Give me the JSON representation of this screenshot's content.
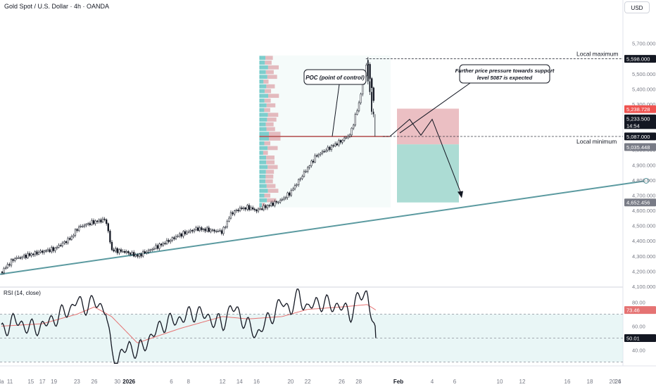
{
  "header": {
    "title": "Gold Spot / U.S. Dollar · 4h · OANDA",
    "currency": "USD"
  },
  "colors": {
    "bull": "#26a69a",
    "bear": "#ef5350",
    "candle": "#131722",
    "trendline": "#5b9aa0",
    "profile_bull": "#5dc2c2",
    "profile_bear": "#e8a7ae",
    "poc": "#b24a4a",
    "loss_zone": "#e8b4b9",
    "profit_zone": "#9ed6cc",
    "rsi_line": "#131722",
    "rsi_ma": "#e57373",
    "rsi_band": "#d7efef"
  },
  "chart_data": [
    {
      "type": "candlestick",
      "instrument": "Gold Spot / U.S. Dollar",
      "timeframe": "4h",
      "source": "OANDA",
      "ylim": [
        4100,
        5800
      ],
      "y_ticks": [
        "4,100.000",
        "4,200.000",
        "4,300.000",
        "4,400.000",
        "4,500.000",
        "4,600.000",
        "4,700.000",
        "4,800.000",
        "4,900.000",
        "5,000.000",
        "5,100.000",
        "5,200.000",
        "5,300.000",
        "5,400.000",
        "5,500.000",
        "5,600.000",
        "5,700.000"
      ],
      "x_ticks": [
        "11",
        "15",
        "17",
        "19",
        "23",
        "26",
        "30",
        "2026",
        "6",
        "8",
        "12",
        "14",
        "16",
        "20",
        "22",
        "26",
        "28",
        "Feb",
        "4",
        "6",
        "10",
        "12",
        "16",
        "18",
        "20",
        "24",
        "26",
        "Ma"
      ],
      "close_path": [
        {
          "x": "Dec 11",
          "y": 4195
        },
        {
          "x": "Dec 12",
          "y": 4280
        },
        {
          "x": "Dec 15",
          "y": 4310
        },
        {
          "x": "Dec 17",
          "y": 4330
        },
        {
          "x": "Dec 19",
          "y": 4345
        },
        {
          "x": "Dec 22",
          "y": 4420
        },
        {
          "x": "Dec 23",
          "y": 4480
        },
        {
          "x": "Dec 24",
          "y": 4500
        },
        {
          "x": "Dec 26",
          "y": 4525
        },
        {
          "x": "Dec 28",
          "y": 4540
        },
        {
          "x": "Dec 29",
          "y": 4340
        },
        {
          "x": "Dec 31",
          "y": 4330
        },
        {
          "x": "Jan 1",
          "y": 4320
        },
        {
          "x": "Jan 2",
          "y": 4300
        },
        {
          "x": "Jan 5",
          "y": 4380
        },
        {
          "x": "Jan 7",
          "y": 4440
        },
        {
          "x": "Jan 9",
          "y": 4480
        },
        {
          "x": "Jan 12",
          "y": 4460
        },
        {
          "x": "Jan 13",
          "y": 4580
        },
        {
          "x": "Jan 14",
          "y": 4610
        },
        {
          "x": "Jan 15",
          "y": 4620
        },
        {
          "x": "Jan 16",
          "y": 4600
        },
        {
          "x": "Jan 19",
          "y": 4670
        },
        {
          "x": "Jan 20",
          "y": 4720
        },
        {
          "x": "Jan 21",
          "y": 4800
        },
        {
          "x": "Jan 22",
          "y": 4880
        },
        {
          "x": "Jan 23",
          "y": 4960
        },
        {
          "x": "Jan 26",
          "y": 5060
        },
        {
          "x": "Jan 27",
          "y": 5100
        },
        {
          "x": "Jan 28",
          "y": 5300
        },
        {
          "x": "Jan 29",
          "y": 5590
        },
        {
          "x": "Jan 30",
          "y": 5233.5
        }
      ],
      "trendline": {
        "from": {
          "x": "Dec 11",
          "y": 4180
        },
        "to": {
          "x": "Feb 23",
          "y": 4795
        }
      },
      "levels": [
        {
          "name": "Local maximum",
          "value": 5598.0,
          "label": "5,598.000"
        },
        {
          "name": "Local minimum",
          "value": 5087.0,
          "label": "5,087.000"
        }
      ],
      "price_labels": [
        {
          "value": 5238.728,
          "label": "5,238.728",
          "color": "#ef5350"
        },
        {
          "value": 5233.5,
          "label": "5,233.500",
          "color": "#131722"
        },
        {
          "value": 5035.448,
          "label": "5,035.448",
          "color": "#787b86"
        },
        {
          "value": 4652.456,
          "label": "4,652.456",
          "color": "#787b86"
        }
      ],
      "countdown": "14:54",
      "volume_profile": {
        "poc": 5087
      },
      "position": {
        "entry": 5035,
        "stop": 5270,
        "target": 4652.456
      },
      "annotations": [
        {
          "text": "POC (point of control)"
        },
        {
          "text": "Further price pressure towards support level 5087 is expected"
        }
      ]
    },
    {
      "type": "line",
      "title": "RSI (14, close)",
      "ylim": [
        28,
        92
      ],
      "y_ticks": [
        80,
        60,
        40
      ],
      "band": [
        30,
        70
      ],
      "last_value": 50.01,
      "ma_value": 73.46,
      "rsi_path": [
        {
          "x": "Dec 11",
          "y": 55
        },
        {
          "x": "Dec 12",
          "y": 65
        },
        {
          "x": "Dec 15",
          "y": 58
        },
        {
          "x": "Dec 17",
          "y": 60
        },
        {
          "x": "Dec 19",
          "y": 66
        },
        {
          "x": "Dec 22",
          "y": 75
        },
        {
          "x": "Dec 23",
          "y": 82
        },
        {
          "x": "Dec 24",
          "y": 76
        },
        {
          "x": "Dec 26",
          "y": 80
        },
        {
          "x": "Dec 28",
          "y": 74
        },
        {
          "x": "Dec 29",
          "y": 36
        },
        {
          "x": "Dec 30",
          "y": 32
        },
        {
          "x": "Jan 1",
          "y": 44
        },
        {
          "x": "Jan 2",
          "y": 38
        },
        {
          "x": "Jan 5",
          "y": 62
        },
        {
          "x": "Jan 7",
          "y": 66
        },
        {
          "x": "Jan 9",
          "y": 72
        },
        {
          "x": "Jan 12",
          "y": 61
        },
        {
          "x": "Jan 13",
          "y": 76
        },
        {
          "x": "Jan 14",
          "y": 70
        },
        {
          "x": "Jan 15",
          "y": 60
        },
        {
          "x": "Jan 16",
          "y": 53
        },
        {
          "x": "Jan 19",
          "y": 80
        },
        {
          "x": "Jan 20",
          "y": 74
        },
        {
          "x": "Jan 21",
          "y": 86
        },
        {
          "x": "Jan 22",
          "y": 74
        },
        {
          "x": "Jan 23",
          "y": 80
        },
        {
          "x": "Jan 26",
          "y": 76
        },
        {
          "x": "Jan 27",
          "y": 70
        },
        {
          "x": "Jan 28",
          "y": 84
        },
        {
          "x": "Jan 29",
          "y": 88
        },
        {
          "x": "Jan 30",
          "y": 50.01
        }
      ],
      "rsi_ma_path": [
        {
          "x": "Dec 11",
          "y": 60
        },
        {
          "x": "Dec 17",
          "y": 62
        },
        {
          "x": "Dec 23",
          "y": 70
        },
        {
          "x": "Dec 26",
          "y": 76
        },
        {
          "x": "Dec 29",
          "y": 68
        },
        {
          "x": "Jan 2",
          "y": 46
        },
        {
          "x": "Jan 7",
          "y": 58
        },
        {
          "x": "Jan 12",
          "y": 68
        },
        {
          "x": "Jan 15",
          "y": 66
        },
        {
          "x": "Jan 19",
          "y": 68
        },
        {
          "x": "Jan 22",
          "y": 74
        },
        {
          "x": "Jan 26",
          "y": 76
        },
        {
          "x": "Jan 29",
          "y": 78
        },
        {
          "x": "Jan 30",
          "y": 73.46
        }
      ]
    }
  ]
}
